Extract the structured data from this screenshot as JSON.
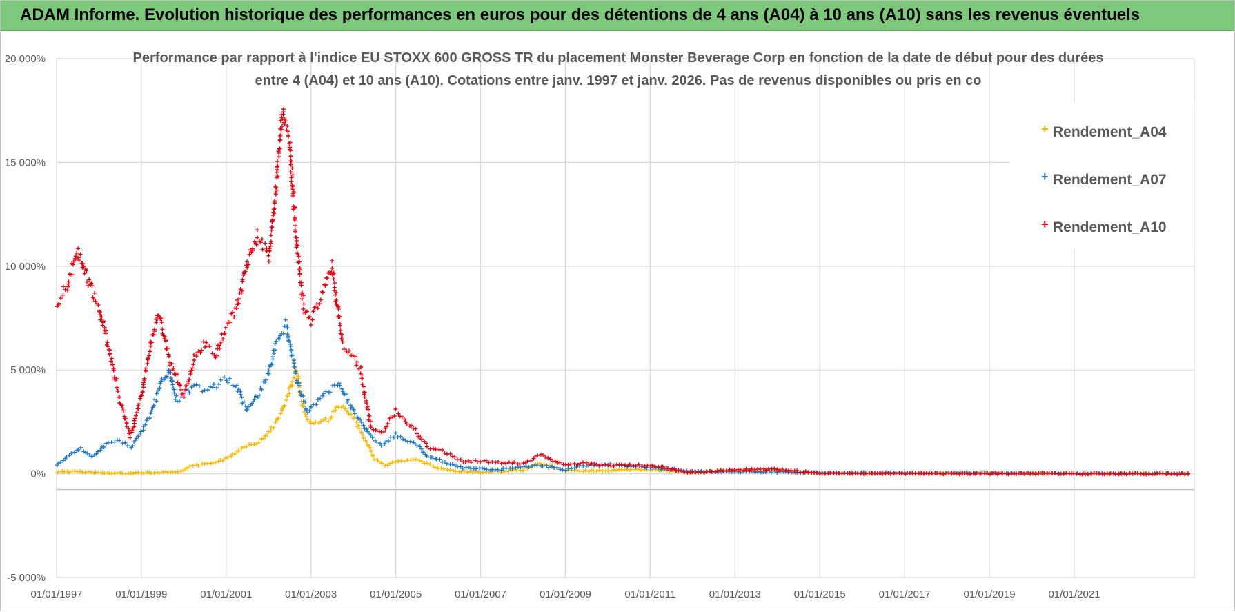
{
  "header": {
    "title": "ADAM Informe. Evolution historique des performances en euros pour des détentions de 4 ans (A04) à 10 ans (A10) sans les revenus éventuels"
  },
  "colors": {
    "banner": "#7dc87a",
    "A04": "#f5b800",
    "A07": "#1f78c8",
    "A10": "#e8000f",
    "grid": "#d9d9d9",
    "text": "#595959"
  },
  "chart_data": {
    "type": "scatter",
    "title_lines": [
      "Performance par rapport à l'indice EU STOXX 600 GROSS TR  du placement Monster Beverage Corp en fonction de la date de début pour des durées",
      "entre 4 (A04) et 10 ans (A10).  Cotations entre janv. 1997 et janv. 2026. Pas de revenus disponibles ou pris en co"
    ],
    "xlabel": "",
    "ylabel": "",
    "x_range": [
      "1997-01-01",
      "2023-11-01"
    ],
    "y_range": [
      -5000,
      20000
    ],
    "y_ticks": [
      -5000,
      0,
      5000,
      10000,
      15000,
      20000
    ],
    "y_tick_labels": [
      "-5 000%",
      "0%",
      "5 000%",
      "10 000%",
      "15 000%",
      "20 000%"
    ],
    "x_tick_labels": [
      "01/01/1997",
      "01/01/1999",
      "01/01/2001",
      "01/01/2003",
      "01/01/2005",
      "01/01/2007",
      "01/01/2009",
      "01/01/2011",
      "01/01/2013",
      "01/01/2015",
      "01/01/2017",
      "01/01/2019",
      "01/01/2021"
    ],
    "grid": true,
    "legend_position": "top-right",
    "marker": "+",
    "series": [
      {
        "name": "Rendement_A04",
        "color": "#f5b800",
        "points": [
          [
            "1997-01-01",
            80
          ],
          [
            "1997-07-01",
            120
          ],
          [
            "1998-01-01",
            40
          ],
          [
            "1998-07-01",
            20
          ],
          [
            "1999-01-01",
            60
          ],
          [
            "1999-07-01",
            60
          ],
          [
            "2000-01-01",
            150
          ],
          [
            "2000-03-01",
            350
          ],
          [
            "2000-07-01",
            450
          ],
          [
            "2001-01-01",
            700
          ],
          [
            "2001-06-01",
            1300
          ],
          [
            "2001-11-01",
            1600
          ],
          [
            "2002-03-01",
            2400
          ],
          [
            "2002-06-01",
            3500
          ],
          [
            "2002-09-01",
            5000
          ],
          [
            "2002-11-01",
            3000
          ],
          [
            "2003-01-01",
            2400
          ],
          [
            "2003-06-01",
            2600
          ],
          [
            "2003-09-01",
            3300
          ],
          [
            "2004-01-01",
            2700
          ],
          [
            "2004-04-01",
            1800
          ],
          [
            "2004-07-01",
            700
          ],
          [
            "2004-10-01",
            400
          ],
          [
            "2005-01-01",
            550
          ],
          [
            "2005-06-01",
            700
          ],
          [
            "2005-10-01",
            500
          ],
          [
            "2006-01-01",
            250
          ],
          [
            "2006-06-01",
            120
          ],
          [
            "2007-01-01",
            80
          ],
          [
            "2007-06-01",
            100
          ],
          [
            "2008-01-01",
            200
          ],
          [
            "2008-06-01",
            500
          ],
          [
            "2009-01-01",
            150
          ],
          [
            "2009-06-01",
            150
          ],
          [
            "2010-01-01",
            150
          ],
          [
            "2011-01-01",
            200
          ],
          [
            "2012-01-01",
            80
          ],
          [
            "2013-01-01",
            150
          ],
          [
            "2014-01-01",
            120
          ],
          [
            "2015-01-01",
            20
          ],
          [
            "2017-01-01",
            20
          ],
          [
            "2019-01-01",
            30
          ],
          [
            "2021-01-01",
            10
          ],
          [
            "2023-10-01",
            5
          ]
        ]
      },
      {
        "name": "Rendement_A07",
        "color": "#1f78c8",
        "points": [
          [
            "1997-01-01",
            400
          ],
          [
            "1997-04-01",
            800
          ],
          [
            "1997-08-01",
            1200
          ],
          [
            "1997-11-01",
            800
          ],
          [
            "1998-03-01",
            1400
          ],
          [
            "1998-07-01",
            1600
          ],
          [
            "1998-10-01",
            1300
          ],
          [
            "1999-01-01",
            2000
          ],
          [
            "1999-04-01",
            3000
          ],
          [
            "1999-07-01",
            4500
          ],
          [
            "1999-09-01",
            5000
          ],
          [
            "1999-11-01",
            3500
          ],
          [
            "2000-01-01",
            3800
          ],
          [
            "2000-04-01",
            4200
          ],
          [
            "2000-07-01",
            4000
          ],
          [
            "2000-11-01",
            4300
          ],
          [
            "2001-01-01",
            4600
          ],
          [
            "2001-04-01",
            4200
          ],
          [
            "2001-07-01",
            3000
          ],
          [
            "2001-10-01",
            3800
          ],
          [
            "2002-01-01",
            4800
          ],
          [
            "2002-03-01",
            6200
          ],
          [
            "2002-06-01",
            7200
          ],
          [
            "2002-09-01",
            4500
          ],
          [
            "2002-12-01",
            3000
          ],
          [
            "2003-03-01",
            3500
          ],
          [
            "2003-06-01",
            4000
          ],
          [
            "2003-09-01",
            4400
          ],
          [
            "2004-01-01",
            3000
          ],
          [
            "2004-03-01",
            2600
          ],
          [
            "2004-06-01",
            1800
          ],
          [
            "2004-09-01",
            1400
          ],
          [
            "2005-01-01",
            1900
          ],
          [
            "2005-06-01",
            1500
          ],
          [
            "2005-10-01",
            900
          ],
          [
            "2006-02-01",
            600
          ],
          [
            "2006-08-01",
            300
          ],
          [
            "2007-06-01",
            200
          ],
          [
            "2008-06-01",
            400
          ],
          [
            "2009-01-01",
            200
          ],
          [
            "2009-06-01",
            350
          ],
          [
            "2010-01-01",
            450
          ],
          [
            "2011-01-01",
            300
          ],
          [
            "2012-01-01",
            100
          ],
          [
            "2013-01-01",
            100
          ],
          [
            "2014-01-01",
            100
          ],
          [
            "2015-01-01",
            40
          ],
          [
            "2017-01-01",
            30
          ],
          [
            "2021-01-01",
            10
          ],
          [
            "2023-10-01",
            5
          ]
        ]
      },
      {
        "name": "Rendement_A10",
        "color": "#e8000f",
        "points": [
          [
            "1997-01-01",
            8200
          ],
          [
            "1997-04-01",
            9000
          ],
          [
            "1997-07-01",
            10800
          ],
          [
            "1997-10-01",
            9300
          ],
          [
            "1998-01-01",
            8000
          ],
          [
            "1998-04-01",
            6000
          ],
          [
            "1998-07-01",
            3500
          ],
          [
            "1998-10-01",
            1800
          ],
          [
            "1999-01-01",
            3800
          ],
          [
            "1999-04-01",
            6500
          ],
          [
            "1999-06-01",
            7700
          ],
          [
            "1999-09-01",
            5500
          ],
          [
            "2000-01-01",
            3800
          ],
          [
            "2000-04-01",
            5600
          ],
          [
            "2000-07-01",
            6300
          ],
          [
            "2000-10-01",
            5700
          ],
          [
            "2001-01-01",
            7000
          ],
          [
            "2001-04-01",
            8000
          ],
          [
            "2001-07-01",
            10200
          ],
          [
            "2001-10-01",
            11500
          ],
          [
            "2002-01-01",
            10500
          ],
          [
            "2002-03-01",
            13500
          ],
          [
            "2002-05-01",
            17500
          ],
          [
            "2002-07-01",
            16000
          ],
          [
            "2002-09-01",
            11000
          ],
          [
            "2002-11-01",
            8000
          ],
          [
            "2003-01-01",
            7400
          ],
          [
            "2003-04-01",
            8500
          ],
          [
            "2003-07-01",
            10000
          ],
          [
            "2003-10-01",
            6200
          ],
          [
            "2004-01-01",
            5600
          ],
          [
            "2004-03-01",
            5000
          ],
          [
            "2004-06-01",
            2200
          ],
          [
            "2004-09-01",
            2000
          ],
          [
            "2005-01-01",
            3000
          ],
          [
            "2005-06-01",
            2200
          ],
          [
            "2005-10-01",
            1300
          ],
          [
            "2006-02-01",
            1100
          ],
          [
            "2006-08-01",
            600
          ],
          [
            "2007-01-01",
            600
          ],
          [
            "2007-06-01",
            550
          ],
          [
            "2008-01-01",
            500
          ],
          [
            "2008-06-01",
            900
          ],
          [
            "2009-01-01",
            400
          ],
          [
            "2009-06-01",
            500
          ],
          [
            "2010-01-01",
            400
          ],
          [
            "2011-01-01",
            400
          ],
          [
            "2012-01-01",
            50
          ],
          [
            "2013-01-01",
            200
          ],
          [
            "2014-01-01",
            200
          ],
          [
            "2015-01-01",
            30
          ],
          [
            "2017-01-01",
            20
          ],
          [
            "2019-01-01",
            10
          ],
          [
            "2021-01-01",
            5
          ],
          [
            "2023-10-01",
            0
          ]
        ]
      }
    ]
  }
}
